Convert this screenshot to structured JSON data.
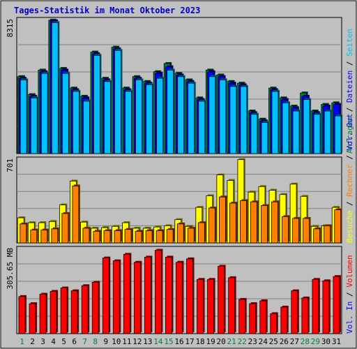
{
  "title": "Tages-Statistik im Monat Oktober 2023",
  "colors": {
    "background": "#c0c0c0",
    "title": "#0000cc",
    "anfragen": "#008040",
    "dateien": "#0000ff",
    "seiten": "#00c0ff",
    "besuche": "#ffff00",
    "rechner": "#ff8000",
    "vol_in": "#ff0000",
    "weekday": "#000000",
    "weekend": "#008040",
    "sep": "#000000"
  },
  "right_labels": {
    "top": [
      {
        "text": "Anfragen",
        "key": "anfragen"
      },
      {
        "text": " / ",
        "key": "sep"
      },
      {
        "text": "Dateien",
        "key": "dateien"
      },
      {
        "text": " / ",
        "key": "sep"
      },
      {
        "text": "Seiten",
        "key": "seiten"
      }
    ],
    "mid": [
      {
        "text": "Besuche",
        "key": "besuche"
      },
      {
        "text": " / ",
        "key": "sep"
      },
      {
        "text": "Rechner",
        "key": "rechner"
      },
      {
        "text": " / ",
        "key": "sep"
      },
      {
        "text": "Vol. Out",
        "key": "dateien"
      }
    ],
    "bot": [
      {
        "text": "Vol. In",
        "key": "dateien"
      },
      {
        "text": " / ",
        "key": "sep"
      },
      {
        "text": "Volumen",
        "key": "vol_in"
      }
    ]
  },
  "chart_data": [
    {
      "type": "bar",
      "panel": "top",
      "max_label": "8315",
      "ylim": [
        0,
        8315
      ],
      "categories": [
        "1",
        "2",
        "3",
        "4",
        "5",
        "6",
        "7",
        "8",
        "9",
        "10",
        "11",
        "12",
        "13",
        "14",
        "15",
        "16",
        "17",
        "18",
        "19",
        "20",
        "21",
        "22",
        "23",
        "24",
        "25",
        "26",
        "27",
        "28",
        "29",
        "30",
        "31"
      ],
      "weekend": [
        1,
        7,
        8,
        14,
        15,
        21,
        22,
        28,
        29
      ],
      "series": [
        {
          "name": "Anfragen",
          "color_key": "anfragen",
          "values": [
            4700,
            3600,
            5100,
            8150,
            5200,
            4000,
            3500,
            6200,
            4600,
            6500,
            4000,
            4700,
            4400,
            5000,
            5500,
            4900,
            4500,
            3400,
            5100,
            4800,
            4400,
            4300,
            2600,
            2100,
            4000,
            3400,
            2900,
            3700,
            2600,
            3000,
            3100
          ]
        },
        {
          "name": "Dateien",
          "color_key": "dateien",
          "values": [
            4600,
            3500,
            5000,
            8100,
            5100,
            3900,
            3400,
            6100,
            4500,
            6400,
            3900,
            4600,
            4300,
            4900,
            5300,
            4800,
            4400,
            3300,
            5000,
            4700,
            4300,
            4200,
            2500,
            2000,
            3900,
            3300,
            2800,
            3500,
            2500,
            2900,
            3000
          ]
        },
        {
          "name": "Seiten",
          "color_key": "seiten",
          "values": [
            4500,
            3400,
            4900,
            8000,
            4900,
            3800,
            3200,
            6000,
            4400,
            6300,
            3800,
            4500,
            4200,
            4600,
            5100,
            4700,
            4300,
            3200,
            4700,
            4500,
            4100,
            4100,
            2400,
            1900,
            3800,
            3100,
            2600,
            3300,
            2400,
            2600,
            2300
          ]
        }
      ]
    },
    {
      "type": "bar",
      "panel": "mid",
      "max_label": "701",
      "ylim": [
        0,
        701
      ],
      "categories": [
        "1",
        "2",
        "3",
        "4",
        "5",
        "6",
        "7",
        "8",
        "9",
        "10",
        "11",
        "12",
        "13",
        "14",
        "15",
        "16",
        "17",
        "18",
        "19",
        "20",
        "21",
        "22",
        "23",
        "24",
        "25",
        "26",
        "27",
        "28",
        "29",
        "30",
        "31"
      ],
      "series": [
        {
          "name": "Besuche",
          "color_key": "besuche",
          "values": [
            205,
            165,
            165,
            175,
            310,
            505,
            170,
            120,
            125,
            135,
            165,
            120,
            120,
            130,
            140,
            190,
            135,
            290,
            385,
            555,
            510,
            680,
            415,
            460,
            430,
            395,
            480,
            380,
            135,
            140,
            290
          ]
        },
        {
          "name": "Rechner",
          "color_key": "rechner",
          "values": [
            155,
            105,
            105,
            115,
            240,
            465,
            120,
            95,
            100,
            100,
            110,
            95,
            100,
            100,
            110,
            155,
            120,
            165,
            285,
            375,
            325,
            345,
            335,
            305,
            335,
            215,
            200,
            200,
            115,
            140,
            270
          ]
        }
      ]
    },
    {
      "type": "bar",
      "panel": "bot",
      "max_label": "305.65 MB",
      "ylim": [
        0,
        305.65
      ],
      "categories": [
        "1",
        "2",
        "3",
        "4",
        "5",
        "6",
        "7",
        "8",
        "9",
        "10",
        "11",
        "12",
        "13",
        "14",
        "15",
        "16",
        "17",
        "18",
        "19",
        "20",
        "21",
        "22",
        "23",
        "24",
        "25",
        "26",
        "27",
        "28",
        "29",
        "30",
        "31"
      ],
      "series": [
        {
          "name": "Volumen",
          "color_key": "vol_in",
          "values": [
            130,
            105,
            138,
            148,
            160,
            150,
            168,
            180,
            265,
            255,
            278,
            250,
            268,
            292,
            268,
            250,
            262,
            190,
            190,
            236,
            196,
            120,
            105,
            115,
            70,
            93,
            150,
            125,
            190,
            185,
            200
          ]
        }
      ]
    }
  ]
}
